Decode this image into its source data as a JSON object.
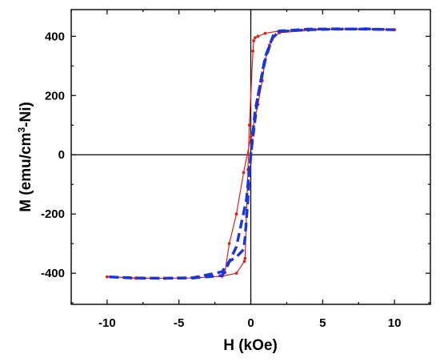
{
  "chart_data": {
    "type": "line",
    "xlabel": "H (kOe)",
    "ylabel_main": "M (emu/cm",
    "ylabel_sup": "3",
    "ylabel_tail": "-Ni)",
    "xlim": [
      -12.5,
      12.5
    ],
    "ylim": [
      -505,
      490
    ],
    "xticks": [
      -10,
      -5,
      0,
      5,
      10
    ],
    "xtick_labels": [
      "-10",
      "-5",
      "0",
      "5",
      "10"
    ],
    "yticks": [
      -400,
      -200,
      0,
      200,
      400
    ],
    "ytick_labels": [
      "-400",
      "-200",
      "0",
      "200",
      "400"
    ],
    "zero_lines": true,
    "grid": false,
    "series": [
      {
        "style": "solid-with-dots",
        "color": "#e0201c",
        "x": [
          10,
          8,
          6,
          4,
          2,
          1,
          0.5,
          0.3,
          0.2,
          0.15,
          -0.1,
          -0.2,
          -0.3,
          -0.4,
          -0.45,
          -1,
          -2,
          -4,
          -6,
          -8,
          -10,
          -8,
          -6,
          -4,
          -2,
          -1.8,
          -1.5,
          -1,
          -0.5,
          0,
          0.5,
          0.8,
          1.0,
          1.3,
          1.5,
          2,
          4,
          6,
          8,
          10
        ],
        "y": [
          422,
          424,
          425,
          424,
          418,
          410,
          400,
          395,
          385,
          350,
          100,
          -50,
          -200,
          -350,
          -360,
          -400,
          -410,
          -416,
          -417,
          -416,
          -412,
          -417,
          -417,
          -416,
          -410,
          -398,
          -300,
          -200,
          -60,
          60,
          170,
          250,
          320,
          370,
          390,
          412,
          420,
          424,
          425,
          422
        ]
      },
      {
        "style": "dashed",
        "color": "#1a35d8",
        "x": [
          10,
          8,
          6,
          4,
          2,
          1.6,
          1.0,
          0.5,
          0.2,
          0,
          -0.2,
          -0.4,
          -0.5,
          -1,
          -1.5,
          -2,
          -4,
          -6,
          -8,
          -10,
          -8,
          -6,
          -4,
          -2,
          -1.8,
          -1.0,
          -0.3,
          0,
          0.3,
          1.0,
          1.5,
          1.8,
          2,
          4,
          6,
          8,
          10
        ],
        "y": [
          422,
          424,
          425,
          424,
          418,
          408,
          330,
          200,
          80,
          0,
          -150,
          -280,
          -320,
          -345,
          -360,
          -395,
          -415,
          -417,
          -416,
          -412,
          -417,
          -417,
          -416,
          -408,
          -393,
          -310,
          -150,
          0,
          150,
          320,
          395,
          408,
          416,
          422,
          424,
          425,
          422
        ]
      }
    ]
  }
}
